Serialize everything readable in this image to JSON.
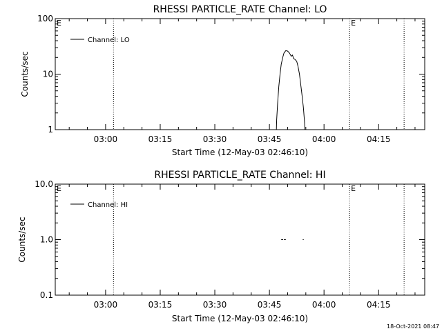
{
  "chart_data": [
    {
      "type": "line",
      "title": "RHESSI PARTICLE_RATE Channel: LO",
      "xlabel": "Start Time (12-May-03 02:46:10)",
      "ylabel": "Counts/sec",
      "y_scale": "log",
      "ylim": [
        1,
        100
      ],
      "yticks": [
        "1",
        "10",
        "100"
      ],
      "xlim": [
        "02:46:10",
        "04:27:40"
      ],
      "xticks": [
        "03:00",
        "03:15",
        "03:30",
        "03:45",
        "04:00",
        "04:15"
      ],
      "grid": false,
      "legend": {
        "placement": "top-left",
        "entries": [
          "Channel: LO"
        ]
      },
      "event_lines": [
        "03:02:10",
        "04:07:00",
        "04:22:00"
      ],
      "event_markers": [
        {
          "time": "02:46:10",
          "label": "E"
        },
        {
          "time": "04:07:00",
          "label": "E"
        }
      ],
      "series": [
        {
          "name": "Channel: LO",
          "points": [
            [
              "03:46:55",
              1
            ],
            [
              "03:47:00",
              1.5
            ],
            [
              "03:47:15",
              3
            ],
            [
              "03:47:35",
              6
            ],
            [
              "03:47:55",
              10
            ],
            [
              "03:48:15",
              15
            ],
            [
              "03:48:40",
              20
            ],
            [
              "03:49:00",
              24
            ],
            [
              "03:49:30",
              26.5
            ],
            [
              "03:50:00",
              26
            ],
            [
              "03:50:30",
              24
            ],
            [
              "03:51:00",
              21
            ],
            [
              "03:51:20",
              22
            ],
            [
              "03:51:40",
              19
            ],
            [
              "03:52:00",
              18.5
            ],
            [
              "03:52:30",
              17
            ],
            [
              "03:52:50",
              14
            ],
            [
              "03:53:15",
              10
            ],
            [
              "03:53:40",
              6
            ],
            [
              "03:54:00",
              4
            ],
            [
              "03:54:20",
              2.5
            ],
            [
              "03:54:40",
              1.3
            ],
            [
              "03:54:45",
              1
            ]
          ]
        }
      ]
    },
    {
      "type": "line",
      "title": "RHESSI PARTICLE_RATE Channel: HI",
      "xlabel": "Start Time (12-May-03 02:46:10)",
      "ylabel": "Counts/sec",
      "y_scale": "log",
      "ylim": [
        0.1,
        10
      ],
      "yticks": [
        "0.1",
        "1.0",
        "10.0"
      ],
      "xlim": [
        "02:46:10",
        "04:27:40"
      ],
      "xticks": [
        "03:00",
        "03:15",
        "03:30",
        "03:45",
        "04:00",
        "04:15"
      ],
      "grid": false,
      "legend": {
        "placement": "top-left",
        "entries": [
          "Channel: HI"
        ]
      },
      "event_lines": [
        "03:02:10",
        "04:07:00",
        "04:22:00"
      ],
      "event_markers": [
        {
          "time": "02:46:10",
          "label": "E"
        },
        {
          "time": "04:07:00",
          "label": "E"
        }
      ],
      "series": [
        {
          "name": "Channel: HI",
          "segments": [
            [
              [
                "03:48:15",
                1
              ],
              [
                "03:48:45",
                1
              ]
            ],
            [
              [
                "03:49:00",
                1
              ],
              [
                "03:49:30",
                1
              ]
            ],
            [
              [
                "03:54:10",
                1
              ],
              [
                "03:54:25",
                1
              ]
            ]
          ]
        }
      ]
    }
  ],
  "footer": {
    "timestamp": "18-Oct-2021 08:47"
  }
}
